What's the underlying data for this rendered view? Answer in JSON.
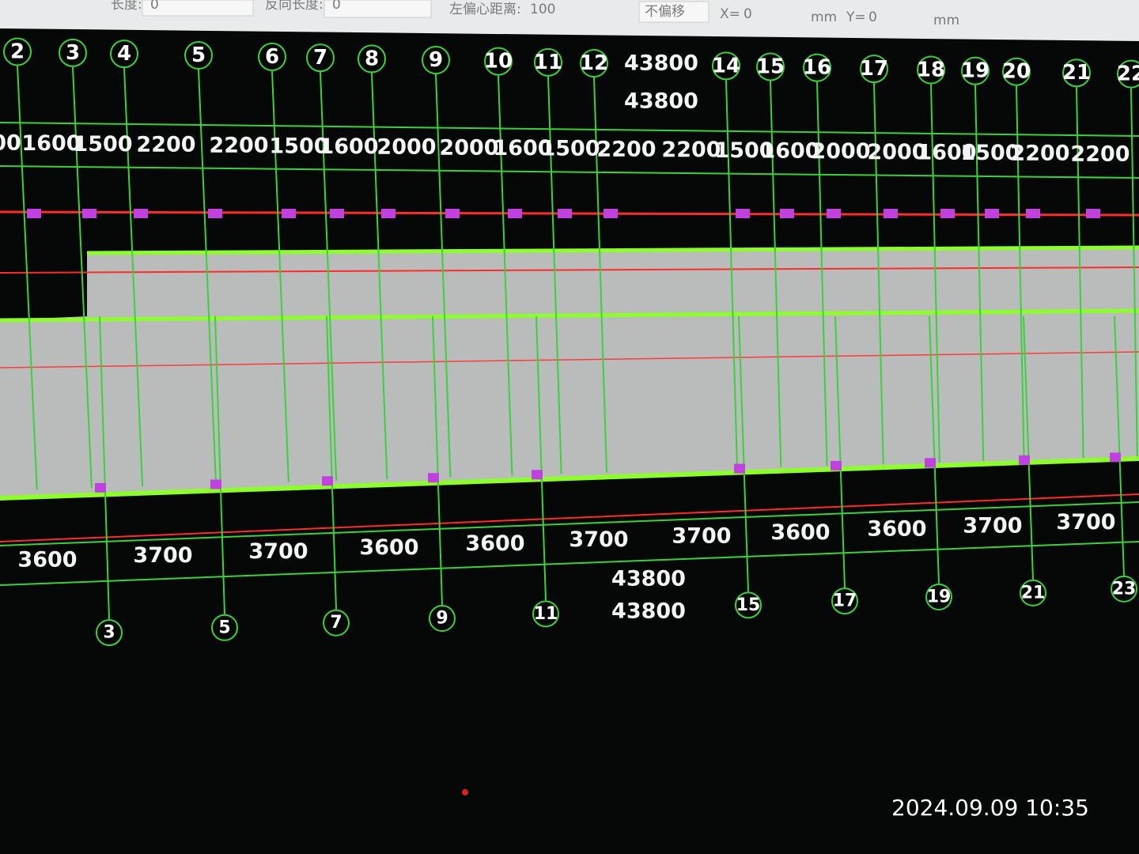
{
  "toolbar": {
    "length_label": "长度:",
    "length_value": "0",
    "reverse_label": "反向长度:",
    "reverse_value": "0",
    "offset_label": "左偏心距离:",
    "offset_value": "100",
    "offset_mode": "不偏移",
    "x_label": "X=",
    "x_value": "0",
    "x_unit": "mm",
    "y_label": "Y=",
    "y_value": "0",
    "y_unit": "mm"
  },
  "top_axes": [
    "2",
    "3",
    "4",
    "5",
    "6",
    "7",
    "8",
    "9",
    "10",
    "11",
    "12",
    "14",
    "15",
    "16",
    "17",
    "18",
    "19",
    "20",
    "21",
    "22"
  ],
  "top_totals": [
    "43800",
    "43800"
  ],
  "top_dimensions": [
    "00",
    "1600",
    "1500",
    "2200",
    "2200",
    "1500",
    "1600",
    "2000",
    "2000",
    "1600",
    "1500",
    "2200",
    "2200",
    "1500",
    "1600",
    "2000",
    "2000",
    "1600",
    "1500",
    "2200",
    "2200"
  ],
  "bottom_dimensions": [
    "3600",
    "3700",
    "3700",
    "3600",
    "3600",
    "3700",
    "3700",
    "3600",
    "3600",
    "3700",
    "3700"
  ],
  "bottom_totals": [
    "43800",
    "43800"
  ],
  "bottom_axes": [
    "3",
    "5",
    "7",
    "9",
    "11",
    "15",
    "17",
    "19",
    "21",
    "23"
  ],
  "timestamp": "2024.09.09  10:35"
}
